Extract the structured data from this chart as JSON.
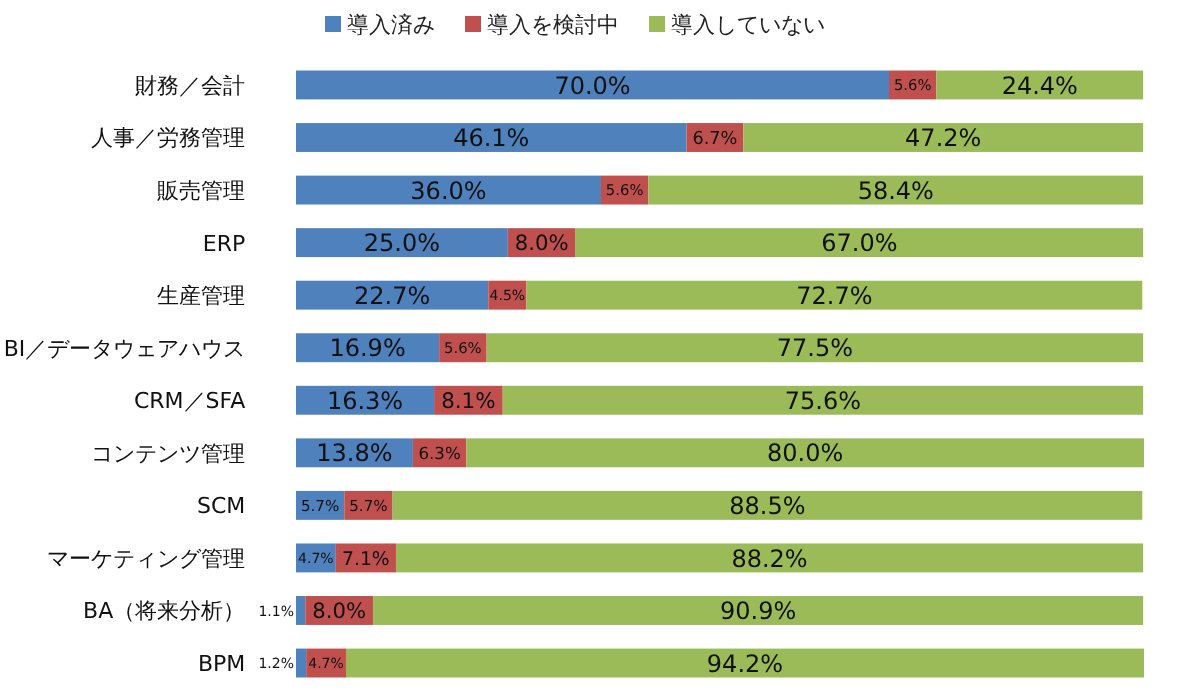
{
  "chart_data": {
    "type": "bar",
    "orientation": "horizontal",
    "stacked": true,
    "legend": "top",
    "tick_labels": "y",
    "categories": [
      "財務／会計",
      "人事／労務管理",
      "販売管理",
      "ERP",
      "生産管理",
      "BI／データウェアハウス",
      "CRM／SFA",
      "コンテンツ管理",
      "SCM",
      "マーケティング管理",
      "BA（将来分析）",
      "BPM"
    ],
    "series": [
      {
        "name": "導入済み",
        "color": "#4f81bd",
        "values": [
          70.0,
          46.1,
          36.0,
          25.0,
          22.7,
          16.9,
          16.3,
          13.8,
          5.7,
          4.7,
          1.1,
          1.2
        ],
        "value_labels": [
          "70.0%",
          "46.1%",
          "36.0%",
          "25.0%",
          "22.7%",
          "16.9%",
          "16.3%",
          "13.8%",
          "5.7%",
          "4.7%",
          "1.1%",
          "1.2%"
        ]
      },
      {
        "name": "導入を検討中",
        "color": "#c0504d",
        "values": [
          5.6,
          6.7,
          5.6,
          8.0,
          4.5,
          5.6,
          8.1,
          6.3,
          5.7,
          7.1,
          8.0,
          4.7
        ],
        "value_labels": [
          "5.6%",
          "6.7%",
          "5.6%",
          "8.0%",
          "4.5%",
          "5.6%",
          "8.1%",
          "6.3%",
          "5.7%",
          "7.1%",
          "8.0%",
          "4.7%"
        ]
      },
      {
        "name": "導入していない",
        "color": "#9bbb59",
        "values": [
          24.4,
          47.2,
          58.4,
          67.0,
          72.7,
          77.5,
          75.6,
          80.0,
          88.5,
          88.2,
          90.9,
          94.2
        ],
        "value_labels": [
          "24.4%",
          "47.2%",
          "58.4%",
          "67.0%",
          "72.7%",
          "77.5%",
          "75.6%",
          "80.0%",
          "88.5%",
          "88.2%",
          "90.9%",
          "94.2%"
        ]
      }
    ]
  }
}
